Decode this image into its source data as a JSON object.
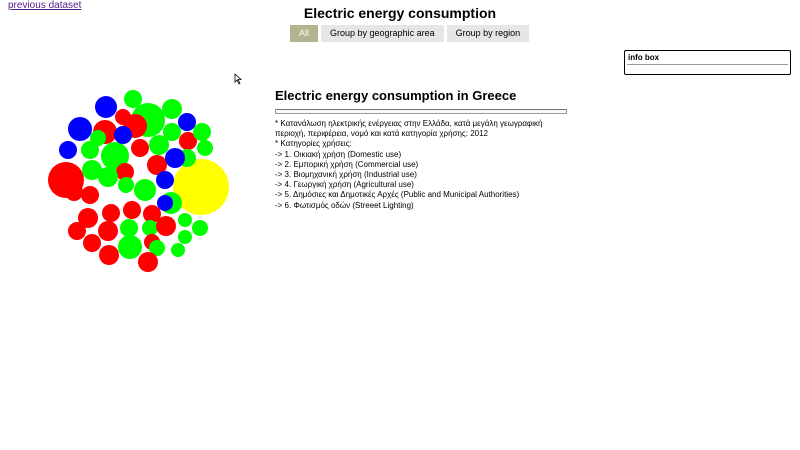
{
  "nav": {
    "prev_link": "previous dataset"
  },
  "header": {
    "title": "Electric energy consumption"
  },
  "tabs": [
    {
      "label": "All",
      "active": true
    },
    {
      "label": "Group by geographic area",
      "active": false
    },
    {
      "label": "Group by region",
      "active": false
    }
  ],
  "info_box": {
    "title": "info box"
  },
  "description": {
    "title": "Electric energy consumption in Greece",
    "lines": [
      "* Κατανάλωση ηλεκτρικής ενέργειας στην Ελλάδα, κατά μεγάλη γεωγραφική περιοχή, περιφέρεια, νομό και κατά κατηγορία χρήσης: 2012",
      "* Κατηγορίες χρήσεις:",
      "-> 1. Οικιακή χρήση (Domestic use)",
      "-> 2. Εμπορική χρήση (Commercial use)",
      "-> 3. Βιομηχανική χρήση (Industrial use)",
      "-> 4. Γεωργική χρήση (Agricultural use)",
      "-> 5. Δημόσιες και Δημοτικές Αρχές (Public and Municipal Authorities)",
      "-> 6. Φωτισμός οδών (Streeet Lighting)"
    ]
  },
  "colors": {
    "red": "#ff0000",
    "green": "#00ff00",
    "blue": "#0000ff",
    "yellow": "#ffff00"
  },
  "bubbles": [
    [
      "#ff0000",
      18
    ],
    [
      "#ffff00",
      28
    ],
    [
      "#00ff00",
      17
    ],
    [
      "#0000ff",
      11
    ],
    [
      "#00ff00",
      9
    ],
    [
      "#0000ff",
      12
    ],
    [
      "#ff0000",
      12
    ],
    [
      "#ff0000",
      8
    ],
    [
      "#00ff00",
      10
    ],
    [
      "#0000ff",
      9
    ],
    [
      "#00ff00",
      9
    ],
    [
      "#ff0000",
      9
    ],
    [
      "#00ff00",
      9
    ],
    [
      "#00ff00",
      8
    ],
    [
      "#ff0000",
      12
    ],
    [
      "#00ff00",
      14
    ],
    [
      "#0000ff",
      9
    ],
    [
      "#00ff00",
      9
    ],
    [
      "#ff0000",
      9
    ],
    [
      "#0000ff",
      9
    ],
    [
      "#00ff00",
      8
    ],
    [
      "#00ff00",
      9
    ],
    [
      "#00ff00",
      10
    ],
    [
      "#ff0000",
      10
    ],
    [
      "#0000ff",
      10
    ],
    [
      "#00ff00",
      10
    ],
    [
      "#ff0000",
      9
    ],
    [
      "#ff0000",
      9
    ],
    [
      "#00ff00",
      11
    ],
    [
      "#0000ff",
      9
    ],
    [
      "#00ff00",
      10
    ],
    [
      "#ff0000",
      9
    ],
    [
      "#ff0000",
      10
    ],
    [
      "#ff0000",
      9
    ],
    [
      "#ff0000",
      9
    ],
    [
      "#ff0000",
      9
    ],
    [
      "#00ff00",
      8
    ],
    [
      "#00ff00",
      11
    ],
    [
      "#0000ff",
      8
    ],
    [
      "#ff0000",
      9
    ],
    [
      "#ff0000",
      10
    ],
    [
      "#00ff00",
      9
    ],
    [
      "#00ff00",
      8
    ],
    [
      "#00ff00",
      7
    ],
    [
      "#ff0000",
      10
    ],
    [
      "#00ff00",
      8
    ],
    [
      "#00ff00",
      7
    ],
    [
      "#ff0000",
      9
    ],
    [
      "#ff0000",
      10
    ],
    [
      "#00ff00",
      12
    ],
    [
      "#ff0000",
      8
    ],
    [
      "#00ff00",
      8
    ],
    [
      "#00ff00",
      7
    ],
    [
      "#ff0000",
      10
    ]
  ]
}
